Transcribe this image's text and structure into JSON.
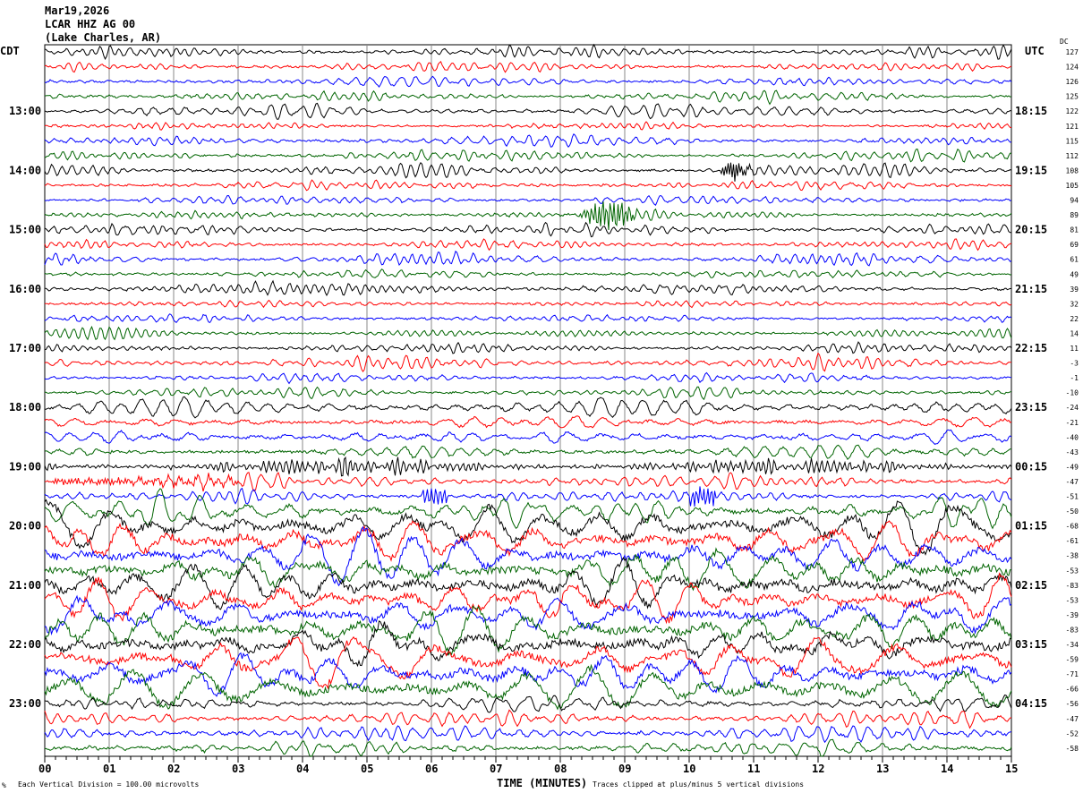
{
  "chart_data": {
    "type": "line",
    "title": [
      "Mar19,2026",
      "LCAR HHZ AG 00",
      "(Lake Charles, AR)"
    ],
    "left_axis_title": "CDT",
    "right_axis_title": "UTC",
    "dc_title": "DC",
    "left_labels": [
      "13:00",
      "14:00",
      "15:00",
      "16:00",
      "17:00",
      "18:00",
      "19:00",
      "20:00",
      "21:00",
      "22:00",
      "23:00"
    ],
    "right_labels": [
      "18:15",
      "19:15",
      "20:15",
      "21:15",
      "22:15",
      "23:15",
      "00:15",
      "01:15",
      "02:15",
      "03:15",
      "04:15"
    ],
    "rows_per_hour": 4,
    "dc_offsets": [
      127,
      124,
      126,
      125,
      122,
      121,
      115,
      112,
      108,
      105,
      94,
      89,
      81,
      69,
      61,
      49,
      39,
      32,
      22,
      14,
      11,
      -3,
      -1,
      -10,
      -24,
      -21,
      -40,
      -43,
      -49,
      -47,
      -51,
      -50,
      -68,
      -61,
      -38,
      -53,
      -83,
      -53,
      -39,
      -83,
      -34,
      -59,
      -71,
      -66,
      -56,
      -47,
      -52,
      -58
    ],
    "trace_colors": [
      "#000000",
      "#ff0000",
      "#0000ff",
      "#006400"
    ],
    "x_ticks": [
      "00",
      "01",
      "02",
      "03",
      "04",
      "05",
      "06",
      "07",
      "08",
      "09",
      "10",
      "11",
      "12",
      "13",
      "14",
      "15"
    ],
    "xlim": [
      0,
      15
    ],
    "xlabel": "TIME (MINUTES)",
    "scale_note": "Each Vertical Division =  100.00 microvolts",
    "clip_note": "Traces clipped at plus/minus 5 vertical divisions",
    "grid": true
  }
}
